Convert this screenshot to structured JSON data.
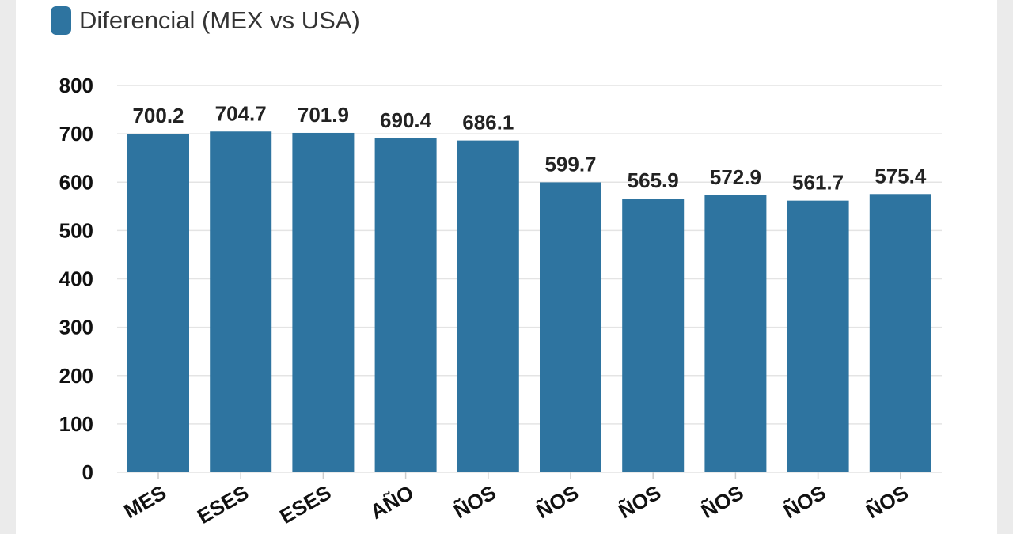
{
  "colors": {
    "bar": "#2e74a0",
    "grid": "#e4e4e4",
    "background": "#ebebeb",
    "card": "#ffffff"
  },
  "legend": {
    "label": "Diferencial (MEX vs USA)"
  },
  "chart_data": {
    "type": "bar",
    "categories": [
      "MES",
      "ESES",
      "ESES",
      "AÑO",
      "ÑOS",
      "ÑOS",
      "ÑOS",
      "ÑOS",
      "ÑOS",
      "ÑOS"
    ],
    "series": [
      {
        "name": "Diferencial (MEX vs USA)",
        "values": [
          700.2,
          704.7,
          701.9,
          690.4,
          686.1,
          599.7,
          565.9,
          572.9,
          561.7,
          575.4
        ]
      }
    ],
    "ylim": [
      0,
      800
    ],
    "yticks": [
      0,
      100,
      200,
      300,
      400,
      500,
      600,
      700,
      800
    ],
    "grid": true,
    "legend_position": "top-left"
  }
}
